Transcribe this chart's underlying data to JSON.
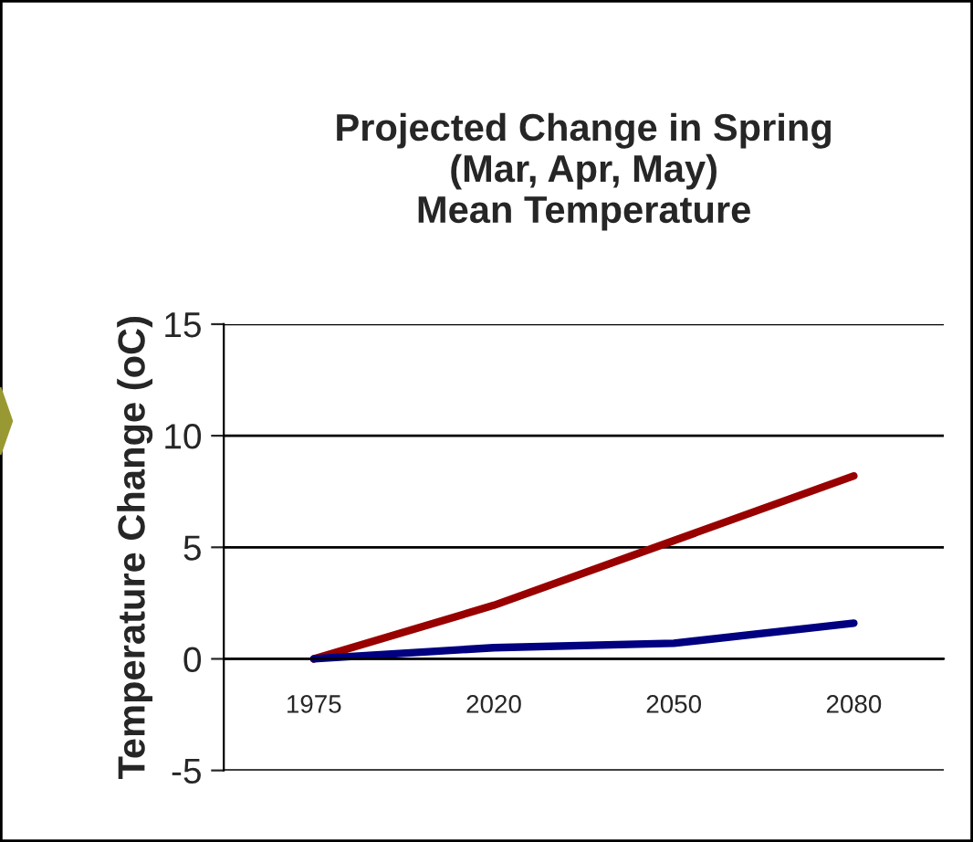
{
  "chart_data": {
    "type": "line",
    "title": "Projected Change in Spring\n(Mar, Apr, May)\nMean Temperature",
    "ylabel": "Temperature Change (oC)",
    "categories": [
      "1975",
      "2020",
      "2050",
      "2080"
    ],
    "series": [
      {
        "color": "#990000",
        "values": [
          0,
          2.4,
          5.3,
          8.2
        ]
      },
      {
        "color": "#000080",
        "values": [
          0,
          0.5,
          0.7,
          1.6
        ]
      }
    ],
    "ylim": [
      -5,
      15
    ],
    "yticks": [
      -5,
      0,
      5,
      10,
      15
    ],
    "grid": "y",
    "legend": false,
    "marker": "none",
    "line_style": "solid"
  }
}
